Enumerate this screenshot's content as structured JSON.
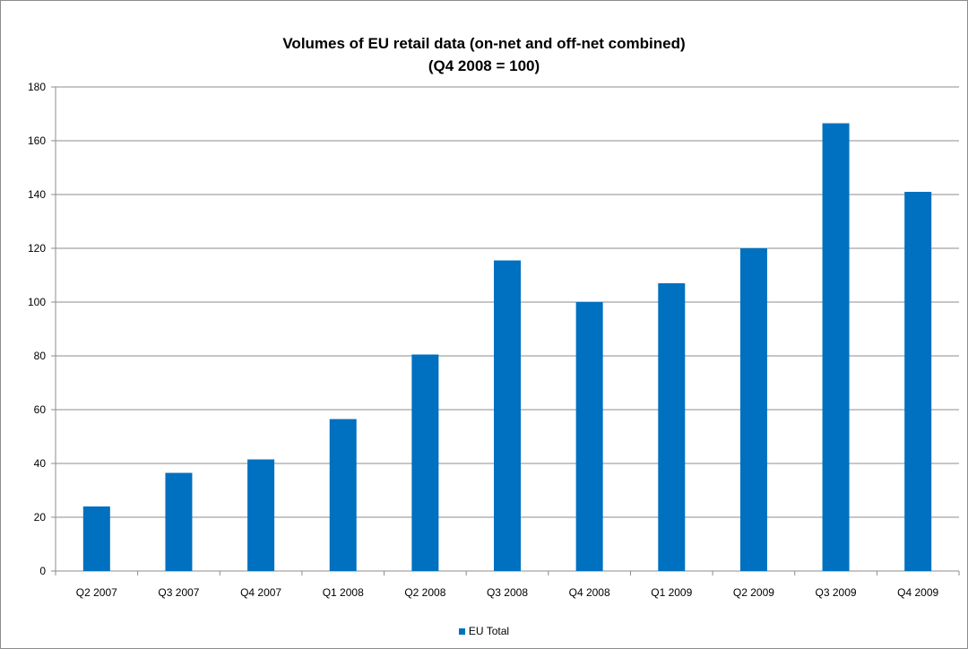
{
  "chart_data": {
    "type": "bar",
    "title_line1": "Volumes of EU retail data (on-net and off-net combined)",
    "title_line2": "(Q4 2008 = 100)",
    "xlabel": "",
    "ylabel": "",
    "ylim": [
      0,
      180
    ],
    "yticks": [
      "0",
      "20",
      "40",
      "60",
      "80",
      "100",
      "120",
      "140",
      "160",
      "180"
    ],
    "grid": true,
    "legend_position": "bottom",
    "categories": [
      "Q2 2007",
      "Q3 2007",
      "Q4 2007",
      "Q1 2008",
      "Q2 2008",
      "Q3 2008",
      "Q4 2008",
      "Q1 2009",
      "Q2 2009",
      "Q3 2009",
      "Q4 2009"
    ],
    "series": [
      {
        "name": "EU Total",
        "color": "#0070c0",
        "values": [
          24,
          36.5,
          41.5,
          56.5,
          80.5,
          115.5,
          100,
          107,
          120,
          166.5,
          141
        ]
      }
    ]
  }
}
